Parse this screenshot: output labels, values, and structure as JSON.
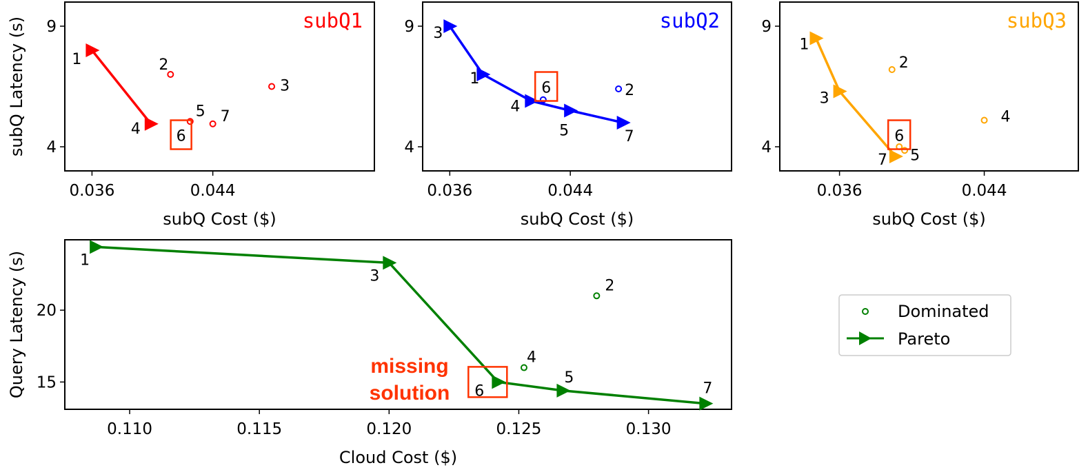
{
  "chart_data": [
    {
      "type": "line",
      "title": "subQ1",
      "color": "#ff0000",
      "xlabel": "subQ Cost ($)",
      "ylabel": "subQ Latency (s)",
      "xlim": [
        0.0342,
        0.0547
      ],
      "ylim": [
        3.0,
        10.0
      ],
      "xticks": [
        0.036,
        0.044
      ],
      "xtick_labels": [
        "0.036",
        "0.044"
      ],
      "yticks": [
        4,
        9
      ],
      "ytick_labels": [
        "4",
        "9"
      ],
      "pareto": [
        {
          "label": "1",
          "x": 0.036,
          "y": 8.0
        },
        {
          "label": "4",
          "x": 0.0399,
          "y": 4.95
        }
      ],
      "dominated": [
        {
          "label": "2",
          "x": 0.0412,
          "y": 7.0
        },
        {
          "label": "3",
          "x": 0.0479,
          "y": 6.5
        },
        {
          "label": "5",
          "x": 0.0425,
          "y": 5.05
        },
        {
          "label": "7",
          "x": 0.044,
          "y": 4.95
        }
      ],
      "missing": {
        "label": "6",
        "x": 0.0419,
        "y": 4.5
      }
    },
    {
      "type": "line",
      "title": "subQ2",
      "color": "#0000ff",
      "xlabel": "subQ Cost ($)",
      "ylabel": "",
      "xlim": [
        0.0342,
        0.0547
      ],
      "ylim": [
        3.0,
        10.0
      ],
      "xticks": [
        0.036,
        0.044
      ],
      "xtick_labels": [
        "0.036",
        "0.044"
      ],
      "yticks": [
        4,
        9
      ],
      "ytick_labels": [
        "4",
        "9"
      ],
      "pareto": [
        {
          "label": "3",
          "x": 0.036,
          "y": 9.0
        },
        {
          "label": "1",
          "x": 0.0382,
          "y": 7.0
        },
        {
          "label": "4",
          "x": 0.0414,
          "y": 5.9
        },
        {
          "label": "5",
          "x": 0.044,
          "y": 5.5
        },
        {
          "label": "7",
          "x": 0.0475,
          "y": 5.0
        }
      ],
      "dominated": [
        {
          "label": "2",
          "x": 0.0472,
          "y": 6.4
        },
        {
          "label": "6",
          "x": 0.0422,
          "y": 5.95
        }
      ],
      "missing": {
        "label": "6",
        "x": 0.0424,
        "y": 6.5
      }
    },
    {
      "type": "line",
      "title": "subQ3",
      "color": "#ffa500",
      "xlabel": "subQ Cost ($)",
      "ylabel": "",
      "xlim": [
        0.0327,
        0.0492
      ],
      "ylim": [
        3.0,
        10.0
      ],
      "xticks": [
        0.036,
        0.044
      ],
      "xtick_labels": [
        "0.036",
        "0.044"
      ],
      "yticks": [
        4,
        9
      ],
      "ytick_labels": [
        "4",
        "9"
      ],
      "pareto": [
        {
          "label": "1",
          "x": 0.0347,
          "y": 8.5
        },
        {
          "label": "3",
          "x": 0.036,
          "y": 6.3
        },
        {
          "label": "7",
          "x": 0.0391,
          "y": 3.6
        }
      ],
      "dominated": [
        {
          "label": "2",
          "x": 0.0389,
          "y": 7.2
        },
        {
          "label": "4",
          "x": 0.044,
          "y": 5.1
        },
        {
          "label": "5",
          "x": 0.0396,
          "y": 3.85
        },
        {
          "label": "6",
          "x": 0.0393,
          "y": 4.0
        }
      ],
      "missing": {
        "label": "6",
        "x": 0.0393,
        "y": 4.5
      }
    },
    {
      "type": "line",
      "title": "",
      "color": "#008000",
      "xlabel": "Cloud Cost ($)",
      "ylabel": "Query Latency (s)",
      "xlim": [
        0.1075,
        0.1332
      ],
      "ylim": [
        13.1,
        24.9
      ],
      "xticks": [
        0.11,
        0.115,
        0.12,
        0.125,
        0.13
      ],
      "xtick_labels": [
        "0.110",
        "0.115",
        "0.120",
        "0.125",
        "0.130"
      ],
      "yticks": [
        15,
        20
      ],
      "ytick_labels": [
        "15",
        "20"
      ],
      "pareto": [
        {
          "label": "1",
          "x": 0.1087,
          "y": 24.4
        },
        {
          "label": "3",
          "x": 0.12,
          "y": 23.3
        },
        {
          "label": "6",
          "x": 0.1242,
          "y": 15.0
        },
        {
          "label": "5",
          "x": 0.1267,
          "y": 14.4
        },
        {
          "label": "7",
          "x": 0.1322,
          "y": 13.5
        }
      ],
      "dominated": [
        {
          "label": "2",
          "x": 0.128,
          "y": 21.0
        },
        {
          "label": "4",
          "x": 0.1252,
          "y": 16.0
        }
      ],
      "missing": {
        "label": "6",
        "x": 0.1238,
        "y": 15.0
      },
      "annotation": "missing solution"
    }
  ],
  "legend": {
    "dominated": "Dominated",
    "pareto": "Pareto"
  },
  "annotation": {
    "line1": "missing",
    "line2": "solution"
  },
  "colors": {
    "highlight": "#ff3300",
    "axis": "#000000"
  }
}
